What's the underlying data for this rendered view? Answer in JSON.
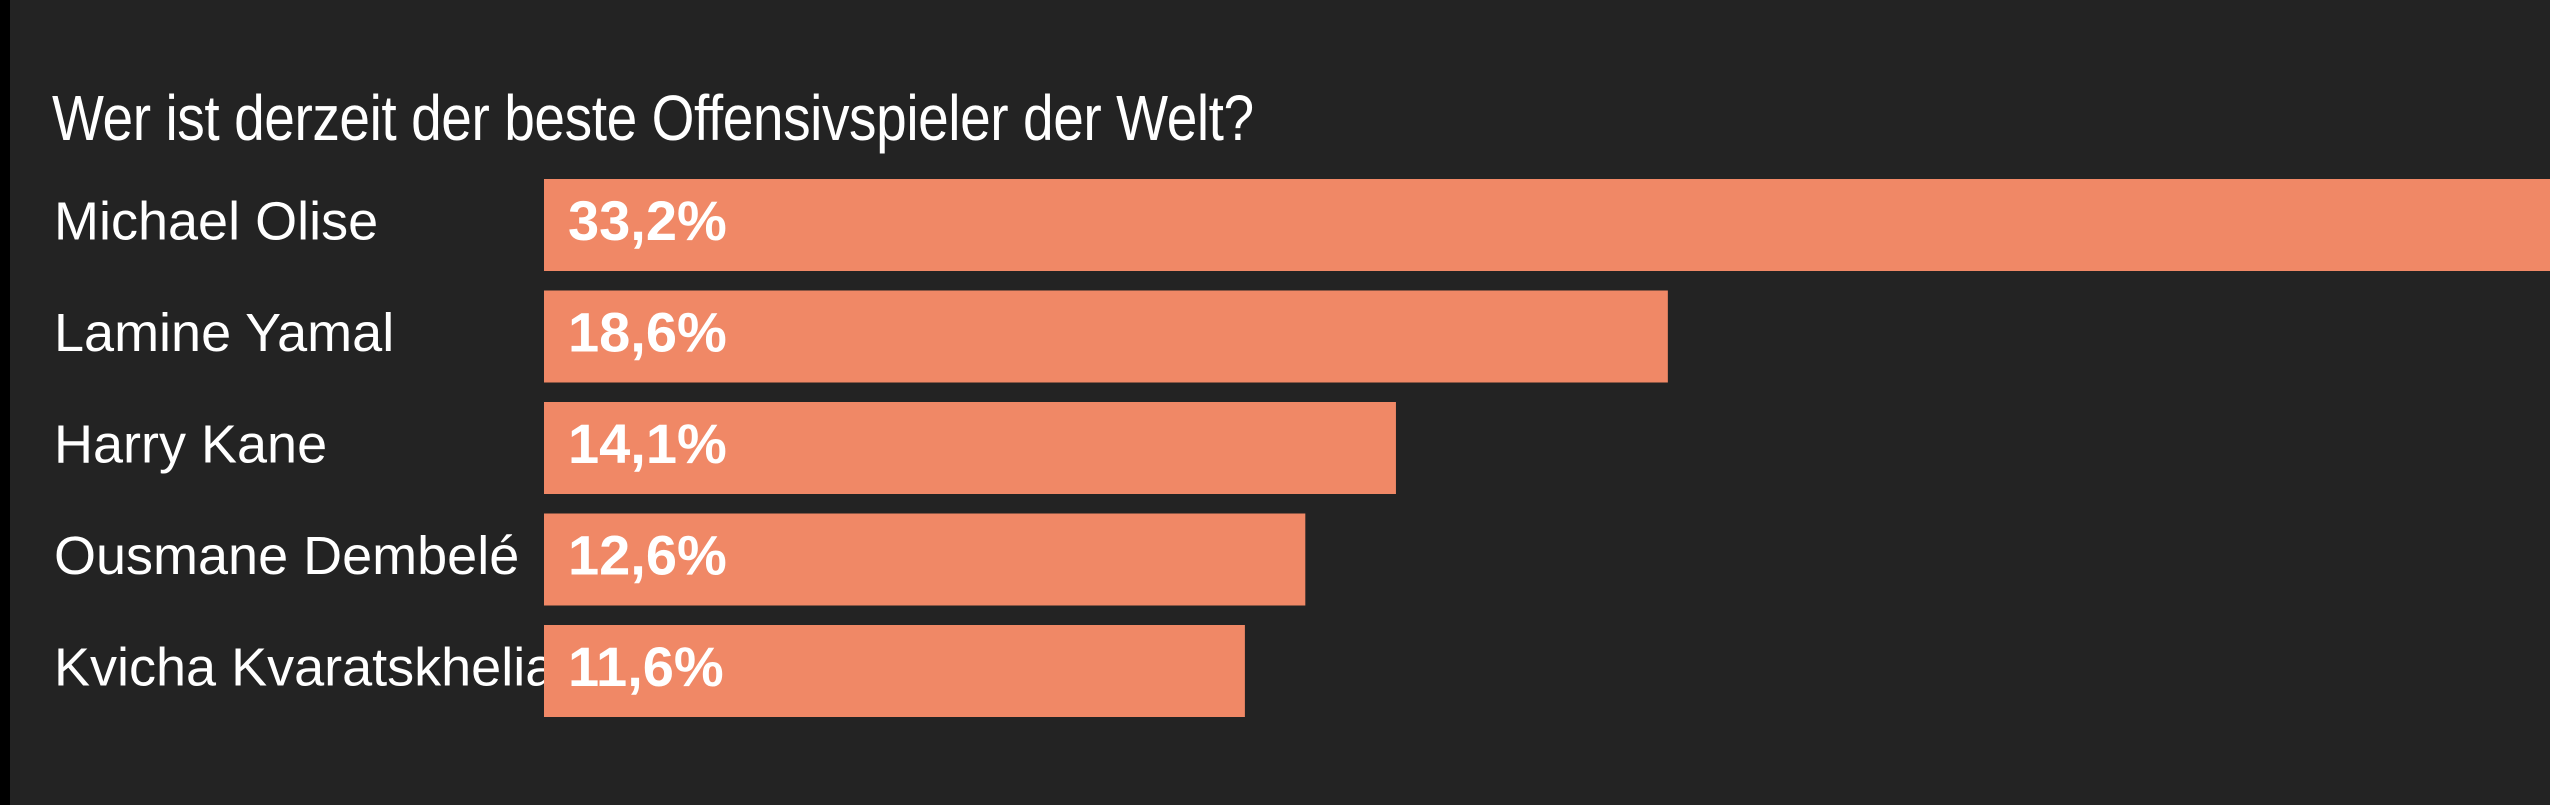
{
  "chart_data": {
    "type": "bar",
    "orientation": "horizontal",
    "title": "Wer ist derzeit der beste Offensivspieler der Welt?",
    "categories": [
      "Michael Olise",
      "Lamine Yamal",
      "Harry Kane",
      "Ousmane Dembelé",
      "Kvicha Kvaratskhelia"
    ],
    "values": [
      33.2,
      18.6,
      14.1,
      12.6,
      11.6
    ],
    "value_labels": [
      "33,2%",
      "18,6%",
      "14,1%",
      "12,6%",
      "11,6%"
    ],
    "unit": "%",
    "xlim": [
      0,
      33.2
    ],
    "grid": false,
    "legend": "none",
    "colors": {
      "background": "#232323",
      "bar": "#f08866",
      "text": "#ffffff"
    }
  }
}
